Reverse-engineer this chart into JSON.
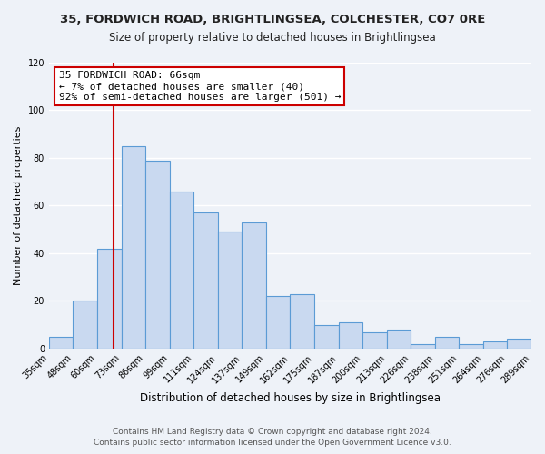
{
  "title": "35, FORDWICH ROAD, BRIGHTLINGSEA, COLCHESTER, CO7 0RE",
  "subtitle": "Size of property relative to detached houses in Brightlingsea",
  "xlabel": "Distribution of detached houses by size in Brightlingsea",
  "ylabel": "Number of detached properties",
  "bin_labels": [
    "35sqm",
    "48sqm",
    "60sqm",
    "73sqm",
    "86sqm",
    "99sqm",
    "111sqm",
    "124sqm",
    "137sqm",
    "149sqm",
    "162sqm",
    "175sqm",
    "187sqm",
    "200sqm",
    "213sqm",
    "226sqm",
    "238sqm",
    "251sqm",
    "264sqm",
    "276sqm",
    "289sqm"
  ],
  "bar_values": [
    5,
    20,
    42,
    85,
    79,
    66,
    57,
    49,
    53,
    22,
    23,
    10,
    11,
    7,
    8,
    2,
    5,
    2,
    3,
    4
  ],
  "bar_color": "#c9d9f0",
  "bar_edge_color": "#5b9bd5",
  "annotation_text_line1": "35 FORDWICH ROAD: 66sqm",
  "annotation_text_line2": "← 7% of detached houses are smaller (40)",
  "annotation_text_line3": "92% of semi-detached houses are larger (501) →",
  "annotation_box_color": "#ffffff",
  "annotation_box_edge_color": "#cc0000",
  "highlight_line_color": "#cc0000",
  "red_line_x": 2.67,
  "ylim": [
    0,
    120
  ],
  "yticks": [
    0,
    20,
    40,
    60,
    80,
    100,
    120
  ],
  "footer_line1": "Contains HM Land Registry data © Crown copyright and database right 2024.",
  "footer_line2": "Contains public sector information licensed under the Open Government Licence v3.0.",
  "background_color": "#eef2f8",
  "grid_color": "#ffffff",
  "title_fontsize": 9.5,
  "subtitle_fontsize": 8.5,
  "ylabel_fontsize": 8,
  "xlabel_fontsize": 8.5,
  "tick_fontsize": 7,
  "footer_fontsize": 6.5,
  "annotation_fontsize": 8
}
